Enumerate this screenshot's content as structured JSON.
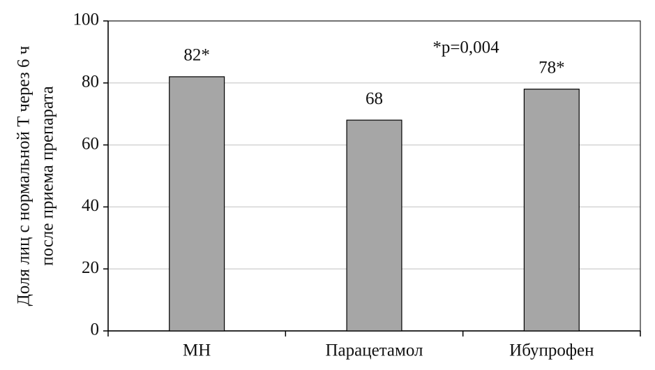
{
  "chart_data": {
    "type": "bar",
    "y_label": [
      "Доля лиц с нормальной T через 6 ч",
      "после приема препарата"
    ],
    "annotation": "*p=0,004",
    "categories": [
      "МН",
      "Парацетамол",
      "Ибупрофен"
    ],
    "values": [
      82,
      68,
      78
    ],
    "value_labels": [
      "82*",
      "68",
      "78*"
    ],
    "color": "#a6a6a6",
    "ylim": [
      0,
      100
    ],
    "yticks": [
      0,
      20,
      40,
      60,
      80,
      100
    ],
    "grid": true
  }
}
